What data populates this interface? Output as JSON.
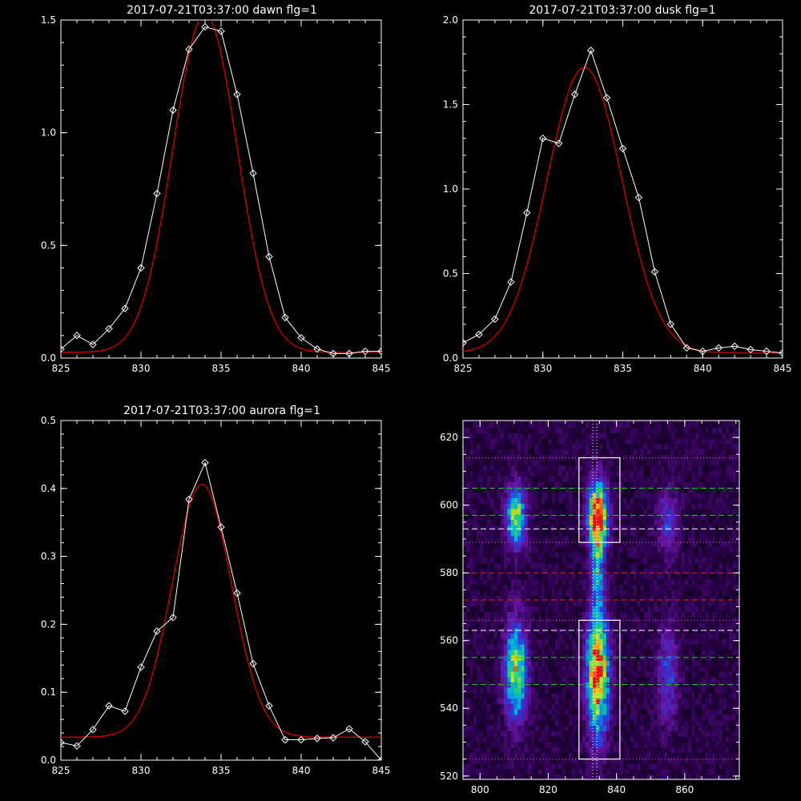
{
  "colors": {
    "background": "#000000",
    "axes": "#ffffff",
    "data": "#ffffff",
    "fit": "#cc0000",
    "green_lines": "#22cc22",
    "red_lines": "#dd2222",
    "magenta_lines": "#dd66dd"
  },
  "chart_data": [
    {
      "type": "line",
      "title": "2017-07-21T03:37:00 dawn flg=1",
      "xlim": [
        825,
        845
      ],
      "ylim": [
        0,
        1.5
      ],
      "xticks": [
        "825",
        "830",
        "835",
        "840",
        "845"
      ],
      "yticks": [
        "0.0",
        "0.5",
        "1.0",
        "1.5"
      ],
      "xtick_vals": [
        825,
        830,
        835,
        840,
        845
      ],
      "ytick_vals": [
        0,
        0.5,
        1.0,
        1.5
      ],
      "x": [
        825,
        826,
        827,
        828,
        829,
        830,
        831,
        832,
        833,
        834,
        835,
        836,
        837,
        838,
        839,
        840,
        841,
        842,
        843,
        844,
        845
      ],
      "y": [
        0.04,
        0.1,
        0.06,
        0.13,
        0.22,
        0.4,
        0.73,
        1.1,
        1.37,
        1.47,
        1.45,
        1.17,
        0.82,
        0.45,
        0.18,
        0.09,
        0.04,
        0.02,
        0.02,
        0.03,
        0.03
      ],
      "fit": {
        "type": "gaussian",
        "center": 834.0,
        "amplitude": 1.5,
        "sigma": 2.0,
        "offset": 0.025
      }
    },
    {
      "type": "line",
      "title": "2017-07-21T03:37:00 dusk flg=1",
      "xlim": [
        825,
        845
      ],
      "ylim": [
        0,
        2.0
      ],
      "xticks": [
        "825",
        "830",
        "835",
        "840",
        "845"
      ],
      "yticks": [
        "0.0",
        "0.5",
        "1.0",
        "1.5",
        "2.0"
      ],
      "xtick_vals": [
        825,
        830,
        835,
        840,
        845
      ],
      "ytick_vals": [
        0,
        0.5,
        1.0,
        1.5,
        2.0
      ],
      "x": [
        825,
        826,
        827,
        828,
        829,
        830,
        831,
        832,
        833,
        834,
        835,
        836,
        837,
        838,
        839,
        840,
        841,
        842,
        843,
        844,
        845
      ],
      "y": [
        0.09,
        0.14,
        0.23,
        0.45,
        0.86,
        1.3,
        1.27,
        1.56,
        1.82,
        1.54,
        1.24,
        0.95,
        0.51,
        0.2,
        0.06,
        0.04,
        0.06,
        0.07,
        0.05,
        0.04,
        0.03
      ],
      "fit": {
        "type": "gaussian",
        "center": 832.6,
        "amplitude": 1.69,
        "sigma": 2.35,
        "offset": 0.03
      }
    },
    {
      "type": "line",
      "title": "2017-07-21T03:37:00 aurora flg=1",
      "xlim": [
        825,
        845
      ],
      "ylim": [
        0,
        0.5
      ],
      "xticks": [
        "825",
        "830",
        "835",
        "840",
        "845"
      ],
      "yticks": [
        "0.0",
        "0.1",
        "0.2",
        "0.3",
        "0.4",
        "0.5"
      ],
      "xtick_vals": [
        825,
        830,
        835,
        840,
        845
      ],
      "ytick_vals": [
        0,
        0.1,
        0.2,
        0.3,
        0.4,
        0.5
      ],
      "x": [
        825,
        826,
        827,
        828,
        829,
        830,
        831,
        832,
        833,
        834,
        835,
        836,
        837,
        838,
        839,
        840,
        841,
        842,
        843,
        844,
        845
      ],
      "y": [
        0.026,
        0.021,
        0.045,
        0.08,
        0.072,
        0.137,
        0.19,
        0.21,
        0.384,
        0.438,
        0.343,
        0.246,
        0.142,
        0.08,
        0.03,
        0.03,
        0.032,
        0.033,
        0.046,
        0.027,
        0.0
      ],
      "fit": {
        "type": "gaussian",
        "center": 833.8,
        "amplitude": 0.372,
        "sigma": 1.85,
        "offset": 0.034
      }
    },
    {
      "type": "heatmap",
      "xlim": [
        795,
        876
      ],
      "ylim": [
        519,
        625
      ],
      "xticks": [
        "800",
        "820",
        "840",
        "860"
      ],
      "xtick_vals": [
        800,
        820,
        840,
        860
      ],
      "yticks": [
        "520",
        "540",
        "560",
        "580",
        "600",
        "620"
      ],
      "ytick_vals": [
        520,
        540,
        560,
        580,
        600,
        620
      ],
      "blobs": [
        {
          "x": 810.5,
          "y": 597,
          "sx": 2.0,
          "sy": 6.0,
          "amp": 0.7
        },
        {
          "x": 810.5,
          "y": 551,
          "sx": 2.2,
          "sy": 10.0,
          "amp": 0.75
        },
        {
          "x": 834.5,
          "y": 597,
          "sx": 2.0,
          "sy": 7.0,
          "amp": 1.0
        },
        {
          "x": 834.5,
          "y": 550,
          "sx": 2.2,
          "sy": 12.0,
          "amp": 1.0
        },
        {
          "x": 834.5,
          "y": 580,
          "sx": 1.2,
          "sy": 9.0,
          "amp": 0.45
        },
        {
          "x": 855.0,
          "y": 595,
          "sx": 2.2,
          "sy": 7.0,
          "amp": 0.28
        },
        {
          "x": 855.0,
          "y": 550,
          "sx": 2.2,
          "sy": 10.0,
          "amp": 0.3
        }
      ],
      "boxes": [
        {
          "x0": 829,
          "x1": 841,
          "y0": 589,
          "y1": 614
        },
        {
          "x0": 829,
          "x1": 841,
          "y0": 525,
          "y1": 566
        }
      ],
      "vlines_dotted": [
        833.0,
        834.2
      ],
      "hlines_magenta_dotted": [
        614,
        589,
        566,
        525
      ],
      "hlines_green_dashed": [
        605,
        597,
        555,
        547
      ],
      "hlines_white_dashed": [
        593,
        563
      ],
      "hlines_red_dashed": [
        580,
        572
      ]
    }
  ]
}
